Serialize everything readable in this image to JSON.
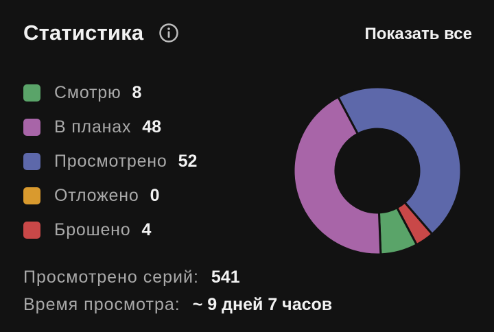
{
  "header": {
    "title": "Статистика",
    "info_icon": "info-circle-icon",
    "show_all_label": "Показать все"
  },
  "legend": [
    {
      "key": "watching",
      "label": "Смотрю",
      "count": "8",
      "color": "#5aa469"
    },
    {
      "key": "planned",
      "label": "В планах",
      "count": "48",
      "color": "#a865a8"
    },
    {
      "key": "completed",
      "label": "Просмотрено",
      "count": "52",
      "color": "#5d68aa"
    },
    {
      "key": "on_hold",
      "label": "Отложено",
      "count": "0",
      "color": "#d99a2e"
    },
    {
      "key": "dropped",
      "label": "Брошено",
      "count": "4",
      "color": "#c94848"
    }
  ],
  "chart_data": {
    "type": "pie",
    "categories": [
      "Смотрю",
      "В планах",
      "Просмотрено",
      "Отложено",
      "Брошено"
    ],
    "values": [
      8,
      48,
      52,
      0,
      4
    ],
    "colors": [
      "#5aa469",
      "#a865a8",
      "#5d68aa",
      "#d99a2e",
      "#c94848"
    ],
    "donut": true,
    "title": ""
  },
  "footer": {
    "episodes_label": "Просмотрено серий:",
    "episodes_value": "541",
    "time_label": "Время просмотра:",
    "time_value": "~ 9 дней 7 часов"
  }
}
